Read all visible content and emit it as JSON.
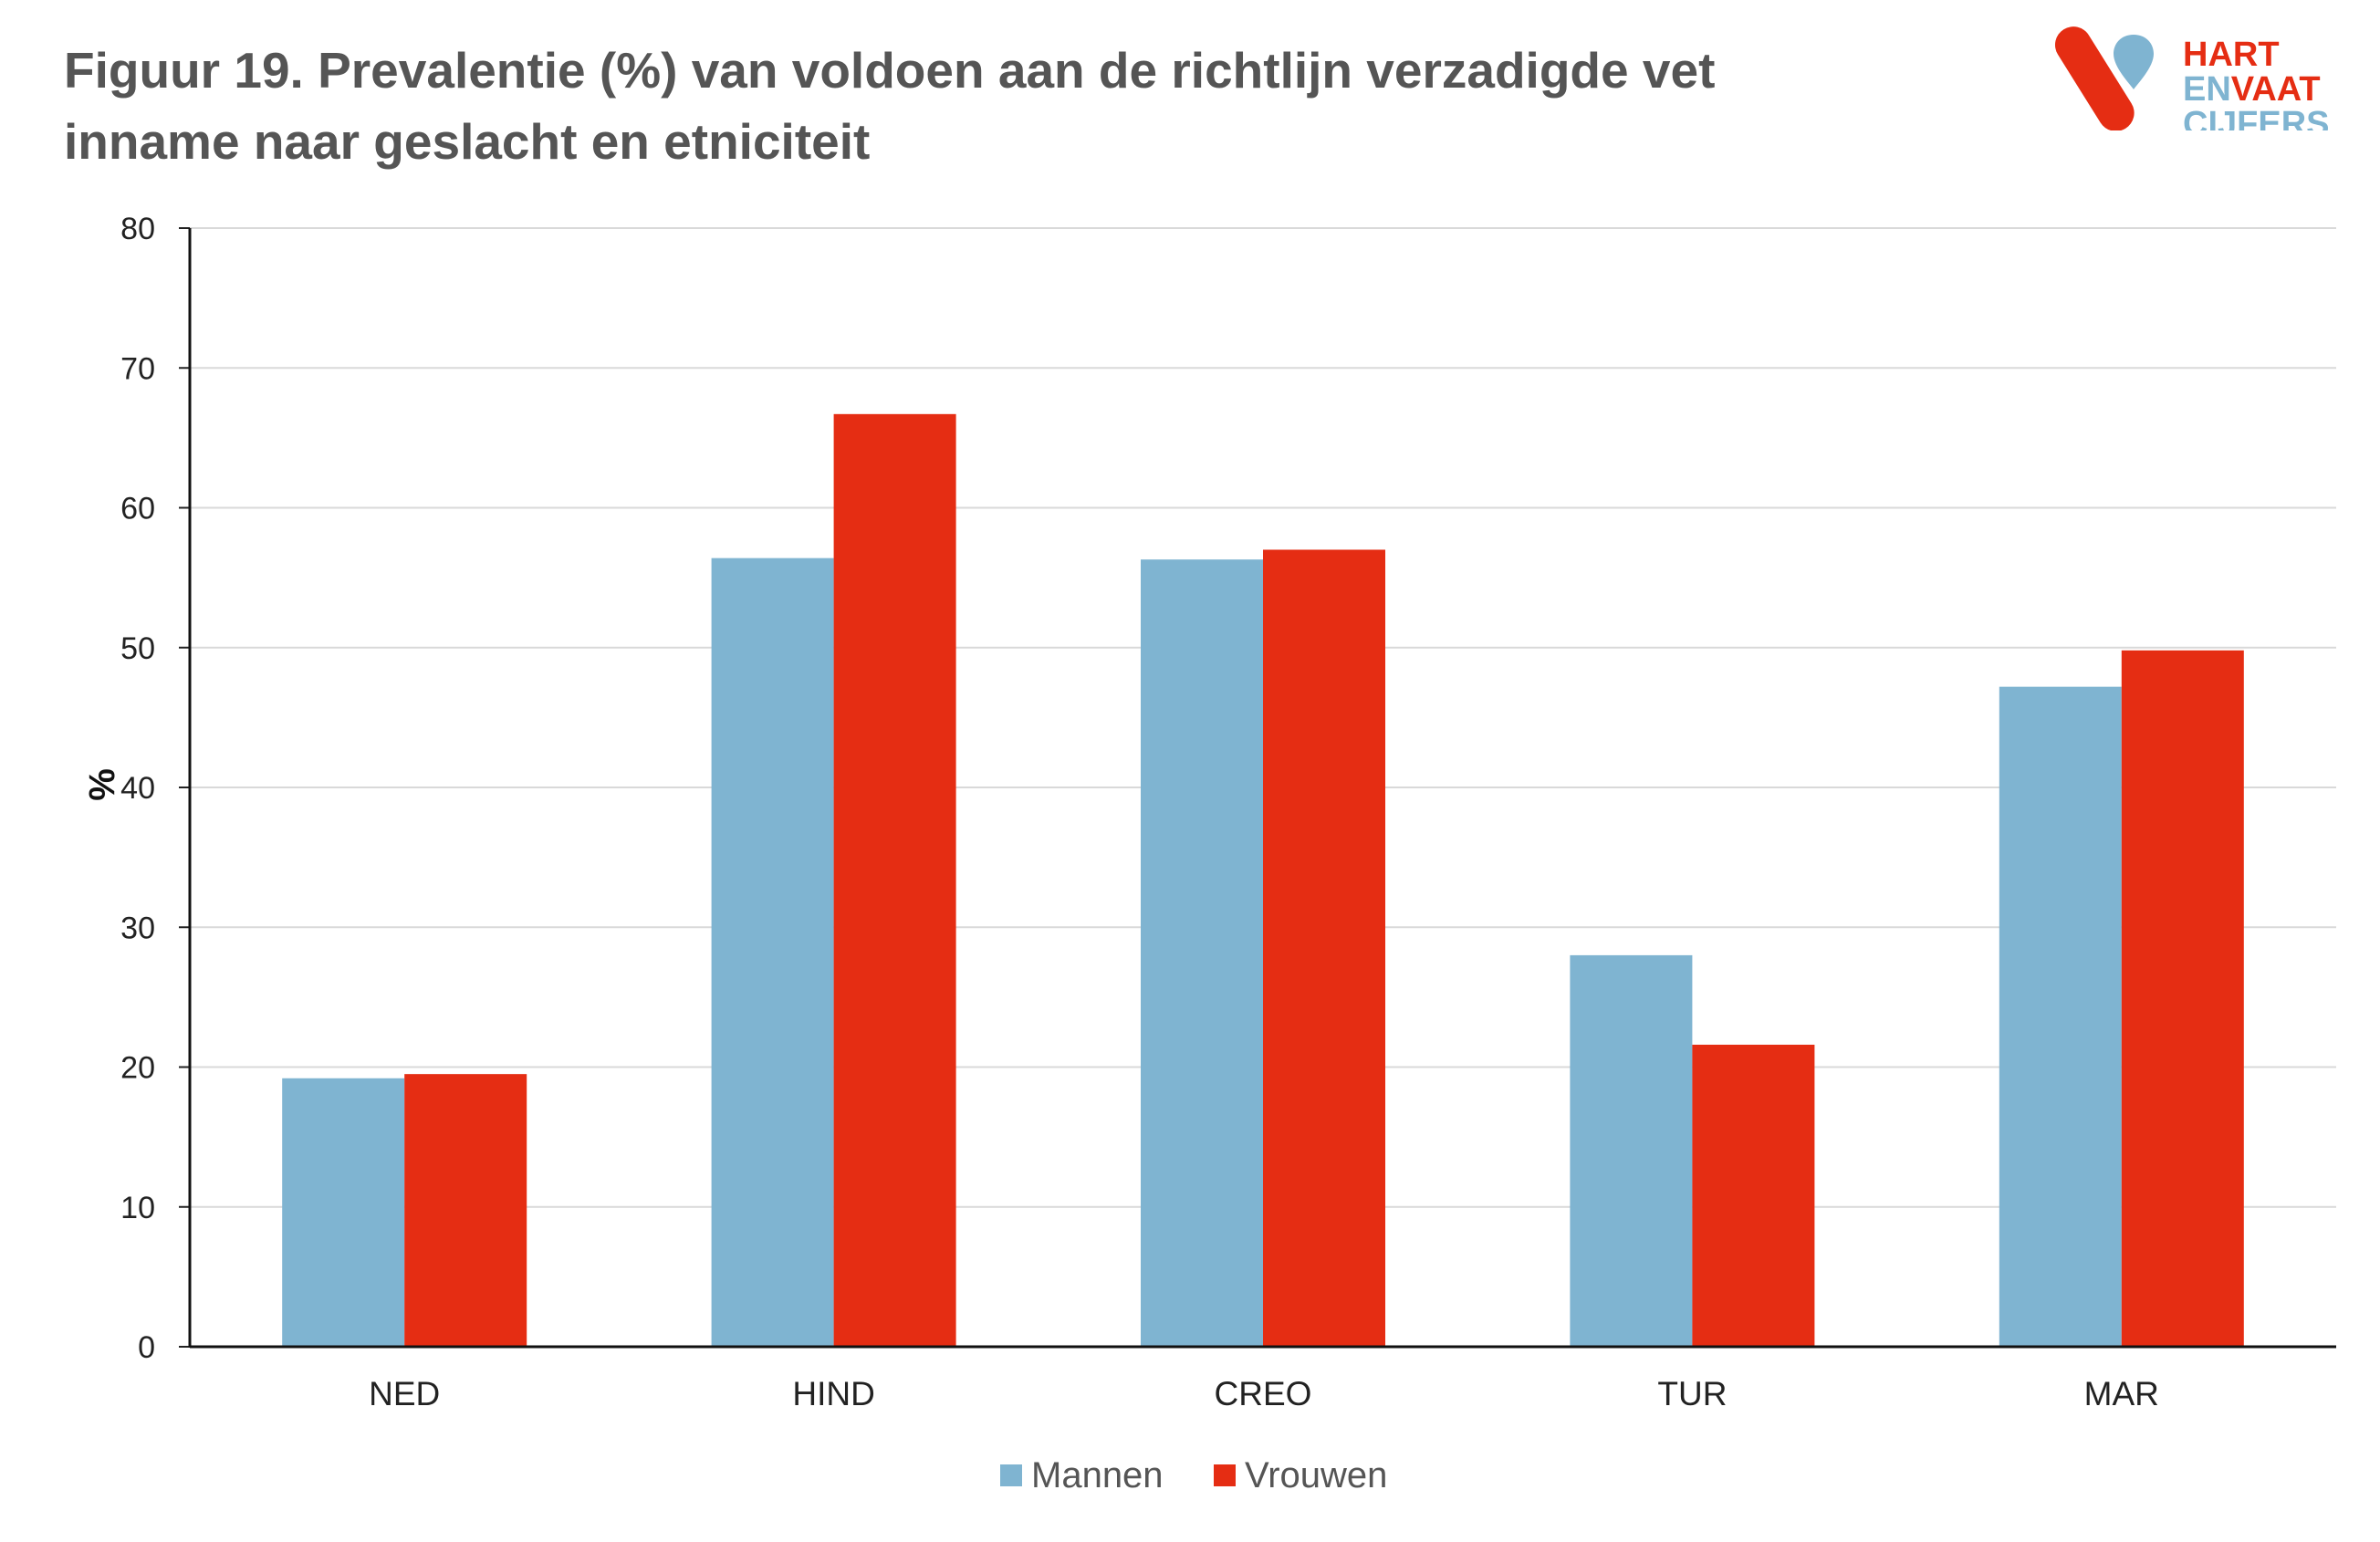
{
  "figure": {
    "title_line1": "Figuur 19. Prevalentie (%) van voldoen aan de richtlijn verzadigde vet",
    "title_line2": "inname naar geslacht en etniciteit"
  },
  "logo": {
    "line1": "HART",
    "line2a": "EN",
    "line2b": "VAAT",
    "line3": "CIJFERS",
    "red": "#E52D13",
    "blue": "#7FB4D1"
  },
  "chart_data": {
    "type": "bar",
    "title": "Figuur 19. Prevalentie (%) van voldoen aan de richtlijn verzadigde vet inname naar geslacht en etniciteit",
    "xlabel": "",
    "ylabel": "%",
    "ylim": [
      0,
      80
    ],
    "yticks": [
      0,
      10,
      20,
      30,
      40,
      50,
      60,
      70,
      80
    ],
    "grid": true,
    "legend_position": "bottom",
    "categories": [
      "NED",
      "HIND",
      "CREO",
      "TUR",
      "MAR"
    ],
    "series": [
      {
        "name": "Mannen",
        "color": "#7FB4D1",
        "values": [
          19.2,
          56.4,
          56.3,
          28.0,
          47.2
        ]
      },
      {
        "name": "Vrouwen",
        "color": "#E52D13",
        "values": [
          19.5,
          66.7,
          57.0,
          21.6,
          49.8
        ]
      }
    ]
  }
}
